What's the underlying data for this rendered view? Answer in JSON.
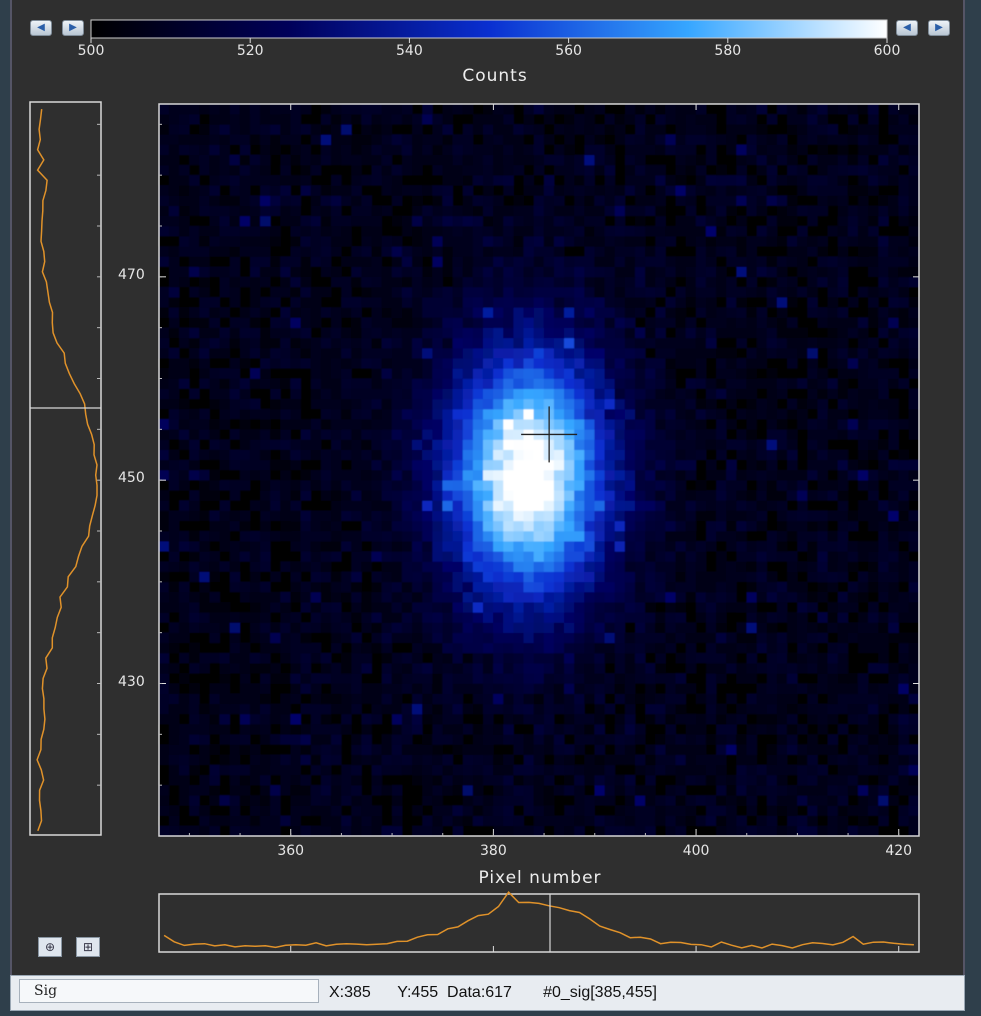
{
  "colorbar": {
    "title": "Counts",
    "min": 500,
    "max": 600,
    "tick_labels": [
      "500",
      "520",
      "540",
      "560",
      "580",
      "600"
    ],
    "gradient": [
      "#000000",
      "#00005a",
      "#0a2fd0",
      "#36a6ff",
      "#ffffff"
    ]
  },
  "image_axes": {
    "x_title": "Pixel number",
    "x_tick_labels": [
      "360",
      "380",
      "400",
      "420"
    ],
    "y_tick_labels": [
      "470",
      "450",
      "430"
    ]
  },
  "crosshair": {
    "x": 385,
    "y": 455
  },
  "status": {
    "tab_label": "Sig",
    "readout": "X:385      Y:455  Data:617       #0_sig[385,455]"
  },
  "colors": {
    "panel": "#2f2f2f",
    "profile": "#e0922a",
    "frame_line": "#d8d8d8"
  },
  "chart_data": {
    "type": "heatmap",
    "title": "",
    "xlabel": "Pixel number",
    "ylabel": "",
    "xlim": [
      347,
      422
    ],
    "ylim": [
      415,
      487
    ],
    "colorbar_label": "Counts",
    "clim": [
      500,
      600
    ],
    "peak": {
      "x": 383.5,
      "y": 450.5,
      "value": 617
    },
    "background_level": 507,
    "x_ticks": [
      360,
      380,
      400,
      420
    ],
    "y_ticks": [
      430,
      450,
      470
    ],
    "colormap": "black-blue-cyan-white",
    "profiles": {
      "vertical_left": "column profile through crosshair",
      "horizontal_bottom": "row profile through crosshair"
    }
  }
}
